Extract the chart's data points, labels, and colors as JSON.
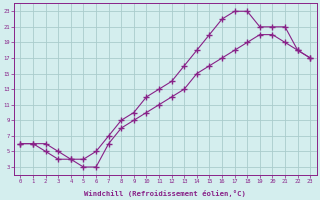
{
  "line_upper_x": [
    0,
    1,
    2,
    3,
    4,
    5,
    6,
    7,
    8,
    9,
    10,
    11,
    12,
    13,
    14,
    15,
    16,
    17,
    18,
    19,
    20,
    21,
    22,
    23
  ],
  "line_upper_y": [
    6,
    6,
    5,
    4,
    4,
    4,
    5,
    7,
    9,
    10,
    12,
    13,
    14,
    16,
    18,
    20,
    22,
    23,
    23,
    21,
    21,
    21,
    18,
    17
  ],
  "line_lower_x": [
    0,
    1,
    2,
    3,
    4,
    5,
    6,
    7,
    8,
    9,
    10,
    11,
    12,
    13,
    14,
    15,
    16,
    17,
    18,
    19,
    20,
    21,
    22,
    23
  ],
  "line_lower_y": [
    6,
    6,
    6,
    5,
    4,
    3,
    3,
    6,
    8,
    9,
    10,
    11,
    12,
    13,
    15,
    16,
    17,
    18,
    19,
    20,
    20,
    19,
    18,
    17
  ],
  "line_color": "#882288",
  "marker": "+",
  "background_color": "#d4eeee",
  "grid_color": "#aacccc",
  "xlabel": "Windchill (Refroidissement éolien,°C)",
  "xlim": [
    -0.5,
    23.5
  ],
  "ylim": [
    2,
    24
  ],
  "xticks": [
    0,
    1,
    2,
    3,
    4,
    5,
    6,
    7,
    8,
    9,
    10,
    11,
    12,
    13,
    14,
    15,
    16,
    17,
    18,
    19,
    20,
    21,
    22,
    23
  ],
  "yticks": [
    3,
    5,
    7,
    9,
    11,
    13,
    15,
    17,
    19,
    21,
    23
  ],
  "font_color": "#882288"
}
